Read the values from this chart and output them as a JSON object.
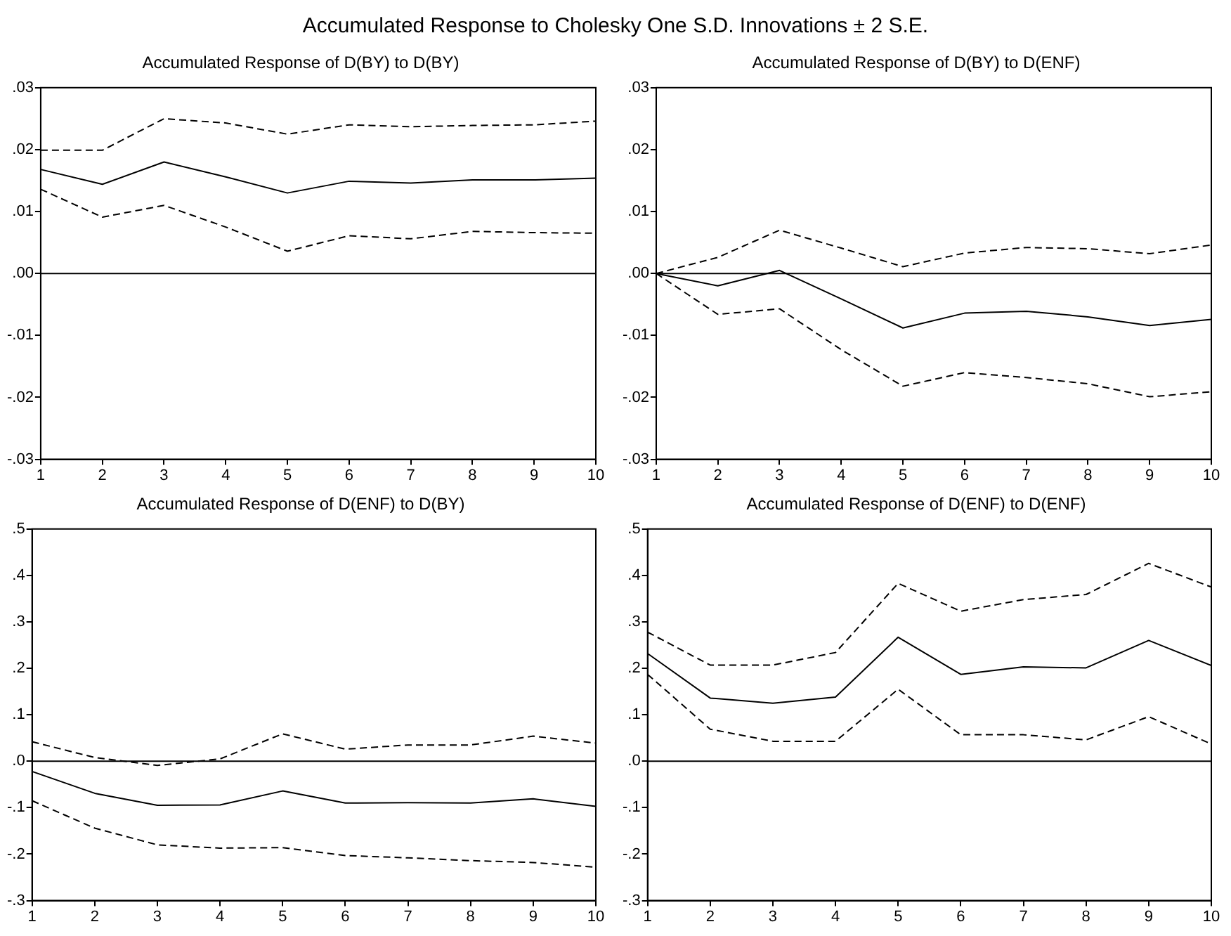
{
  "chart_data": [
    {
      "type": "line",
      "title": "Accumulated Response of D(BY) to D(BY)",
      "annotations": [
        "Accumulated Response to Cholesky One S.D. Innovations ± 2 S.E."
      ],
      "x": [
        1,
        2,
        3,
        4,
        5,
        6,
        7,
        8,
        9,
        10
      ],
      "xlim": [
        1,
        10
      ],
      "xticks": [
        1,
        2,
        3,
        4,
        5,
        6,
        7,
        8,
        9,
        10
      ],
      "ylim": [
        -0.03,
        0.03
      ],
      "yticks": [
        {
          "value": -0.03,
          "label": "-.03"
        },
        {
          "value": -0.02,
          "label": "-.02"
        },
        {
          "value": -0.01,
          "label": "-.01"
        },
        {
          "value": 0,
          "label": ".00"
        },
        {
          "value": 0.01,
          "label": ".01"
        },
        {
          "value": 0.02,
          "label": ".02"
        },
        {
          "value": 0.03,
          "label": ".03"
        }
      ],
      "grid": false,
      "legend": false,
      "ref_lines": [
        {
          "axis": "y",
          "value": 0,
          "color": "#000000",
          "line_style": "solid"
        }
      ],
      "series": [
        {
          "color": "#000000",
          "line_style": "solid",
          "values": [
            0.0168,
            0.0144,
            0.018,
            0.0156,
            0.013,
            0.0149,
            0.0146,
            0.0151,
            0.0151,
            0.0154
          ]
        },
        {
          "color": "#000000",
          "line_style": "dashed",
          "values": [
            0.0199,
            0.0199,
            0.025,
            0.0243,
            0.0225,
            0.024,
            0.0237,
            0.0239,
            0.024,
            0.0246
          ]
        },
        {
          "color": "#000000",
          "line_style": "dashed",
          "values": [
            0.0136,
            0.0091,
            0.011,
            0.0075,
            0.0036,
            0.0061,
            0.0056,
            0.0068,
            0.0066,
            0.0065
          ]
        }
      ]
    },
    {
      "type": "line",
      "title": "Accumulated Response of D(BY) to D(ENF)",
      "x": [
        1,
        2,
        3,
        4,
        5,
        6,
        7,
        8,
        9,
        10
      ],
      "xlim": [
        1,
        10
      ],
      "xticks": [
        1,
        2,
        3,
        4,
        5,
        6,
        7,
        8,
        9,
        10
      ],
      "ylim": [
        -0.03,
        0.03
      ],
      "yticks": [
        {
          "value": -0.03,
          "label": "-.03"
        },
        {
          "value": -0.02,
          "label": "-.02"
        },
        {
          "value": -0.01,
          "label": "-.01"
        },
        {
          "value": 0,
          "label": ".00"
        },
        {
          "value": 0.01,
          "label": ".01"
        },
        {
          "value": 0.02,
          "label": ".02"
        },
        {
          "value": 0.03,
          "label": ".03"
        }
      ],
      "grid": false,
      "legend": false,
      "ref_lines": [
        {
          "axis": "y",
          "value": 0,
          "color": "#000000",
          "line_style": "solid"
        }
      ],
      "series": [
        {
          "color": "#000000",
          "line_style": "solid",
          "values": [
            0,
            -0.002,
            0.0005,
            -0.0041,
            -0.0088,
            -0.0064,
            -0.0061,
            -0.007,
            -0.0084,
            -0.0074
          ]
        },
        {
          "color": "#000000",
          "line_style": "dashed",
          "values": [
            0,
            0.0026,
            0.007,
            0.0041,
            0.0011,
            0.0033,
            0.0042,
            0.004,
            0.0032,
            0.0046
          ]
        },
        {
          "color": "#000000",
          "line_style": "dashed",
          "values": [
            0,
            -0.0066,
            -0.0057,
            -0.0123,
            -0.0182,
            -0.016,
            -0.0168,
            -0.0178,
            -0.0199,
            -0.0191
          ]
        }
      ]
    },
    {
      "type": "line",
      "title": "Accumulated Response of D(ENF) to D(BY)",
      "x": [
        1,
        2,
        3,
        4,
        5,
        6,
        7,
        8,
        9,
        10
      ],
      "xlim": [
        1,
        10
      ],
      "xticks": [
        1,
        2,
        3,
        4,
        5,
        6,
        7,
        8,
        9,
        10
      ],
      "ylim": [
        -0.3,
        0.5
      ],
      "yticks": [
        {
          "value": -0.3,
          "label": "-.3"
        },
        {
          "value": -0.2,
          "label": "-.2"
        },
        {
          "value": -0.1,
          "label": "-.1"
        },
        {
          "value": 0,
          "label": ".0"
        },
        {
          "value": 0.1,
          "label": ".1"
        },
        {
          "value": 0.2,
          "label": ".2"
        },
        {
          "value": 0.3,
          "label": ".3"
        },
        {
          "value": 0.4,
          "label": ".4"
        },
        {
          "value": 0.5,
          "label": ".5"
        }
      ],
      "grid": false,
      "legend": false,
      "ref_lines": [
        {
          "axis": "y",
          "value": 0,
          "color": "#000000",
          "line_style": "solid"
        }
      ],
      "series": [
        {
          "color": "#000000",
          "line_style": "solid",
          "values": [
            -0.022,
            -0.069,
            -0.095,
            -0.094,
            -0.064,
            -0.09,
            -0.089,
            -0.09,
            -0.081,
            -0.097
          ]
        },
        {
          "color": "#000000",
          "line_style": "dashed",
          "values": [
            0.042,
            0.008,
            -0.009,
            0.005,
            0.059,
            0.026,
            0.035,
            0.035,
            0.054,
            0.039
          ]
        },
        {
          "color": "#000000",
          "line_style": "dashed",
          "values": [
            -0.085,
            -0.144,
            -0.18,
            -0.187,
            -0.186,
            -0.203,
            -0.208,
            -0.214,
            -0.218,
            -0.228
          ]
        }
      ]
    },
    {
      "type": "line",
      "title": "Accumulated Response of D(ENF) to D(ENF)",
      "x": [
        1,
        2,
        3,
        4,
        5,
        6,
        7,
        8,
        9,
        10
      ],
      "xlim": [
        1,
        10
      ],
      "xticks": [
        1,
        2,
        3,
        4,
        5,
        6,
        7,
        8,
        9,
        10
      ],
      "ylim": [
        -0.3,
        0.5
      ],
      "yticks": [
        {
          "value": -0.3,
          "label": "-.3"
        },
        {
          "value": -0.2,
          "label": "-.2"
        },
        {
          "value": -0.1,
          "label": "-.1"
        },
        {
          "value": 0,
          "label": ".0"
        },
        {
          "value": 0.1,
          "label": ".1"
        },
        {
          "value": 0.2,
          "label": ".2"
        },
        {
          "value": 0.3,
          "label": ".3"
        },
        {
          "value": 0.4,
          "label": ".4"
        },
        {
          "value": 0.5,
          "label": ".5"
        }
      ],
      "grid": false,
      "legend": false,
      "ref_lines": [
        {
          "axis": "y",
          "value": 0,
          "color": "#000000",
          "line_style": "solid"
        }
      ],
      "series": [
        {
          "color": "#000000",
          "line_style": "solid",
          "values": [
            0.232,
            0.136,
            0.125,
            0.138,
            0.267,
            0.187,
            0.203,
            0.201,
            0.26,
            0.206
          ]
        },
        {
          "color": "#000000",
          "line_style": "dashed",
          "values": [
            0.278,
            0.207,
            0.207,
            0.234,
            0.383,
            0.323,
            0.348,
            0.359,
            0.426,
            0.375
          ]
        },
        {
          "color": "#000000",
          "line_style": "dashed",
          "values": [
            0.187,
            0.069,
            0.043,
            0.043,
            0.155,
            0.057,
            0.057,
            0.046,
            0.096,
            0.037
          ]
        }
      ]
    }
  ]
}
